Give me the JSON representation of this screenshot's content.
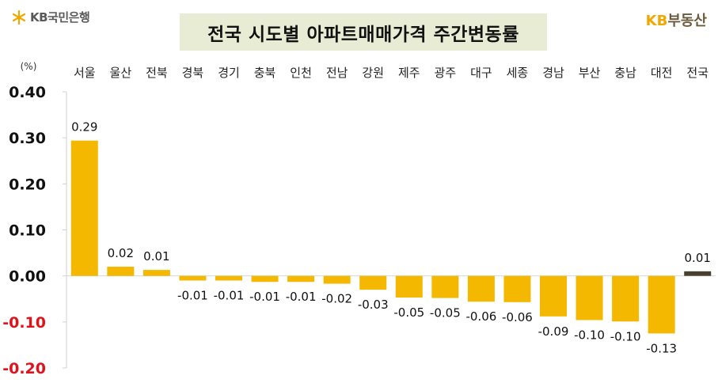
{
  "header": {
    "left_logo": "KB국민은행",
    "title": "전국 시도별 아파트매매가격 주간변동률",
    "right_logo_kb": "KB",
    "right_logo_text": "부동산"
  },
  "colors": {
    "bar": "#F5B800",
    "bar_national": "#4A4030",
    "positive_tick": "#111111",
    "negative_tick": "#E0121B",
    "title_bg": "#E9ECD4"
  },
  "chart_data": {
    "type": "bar",
    "unit_label": "(%)",
    "categories": [
      "서울",
      "울산",
      "전북",
      "경북",
      "경기",
      "충북",
      "인천",
      "전남",
      "강원",
      "제주",
      "광주",
      "대구",
      "세종",
      "경남",
      "부산",
      "충남",
      "대전",
      "전국"
    ],
    "values": [
      0.29,
      0.02,
      0.01,
      -0.01,
      -0.01,
      -0.01,
      -0.01,
      -0.02,
      -0.03,
      -0.05,
      -0.05,
      -0.06,
      -0.06,
      -0.09,
      -0.1,
      -0.1,
      -0.13,
      0.01
    ],
    "bar_values_exact": [
      0.294,
      0.02,
      0.013,
      -0.01,
      -0.01,
      -0.013,
      -0.013,
      -0.017,
      -0.03,
      -0.047,
      -0.048,
      -0.056,
      -0.057,
      -0.088,
      -0.096,
      -0.099,
      -0.125,
      0.01
    ],
    "value_labels": [
      "0.29",
      "0.02",
      "0.01",
      "-0.01",
      "-0.01",
      "-0.01",
      "-0.01",
      "-0.02",
      "-0.03",
      "-0.05",
      "-0.05",
      "-0.06",
      "-0.06",
      "-0.09",
      "-0.10",
      "-0.10",
      "-0.13",
      "0.01"
    ],
    "yticks": [
      "0.40",
      "0.30",
      "0.20",
      "0.10",
      "0.00",
      "-0.10",
      "-0.20"
    ],
    "ylim": [
      -0.2,
      0.4
    ],
    "grid": false,
    "xlabel": "",
    "ylabel": ""
  }
}
